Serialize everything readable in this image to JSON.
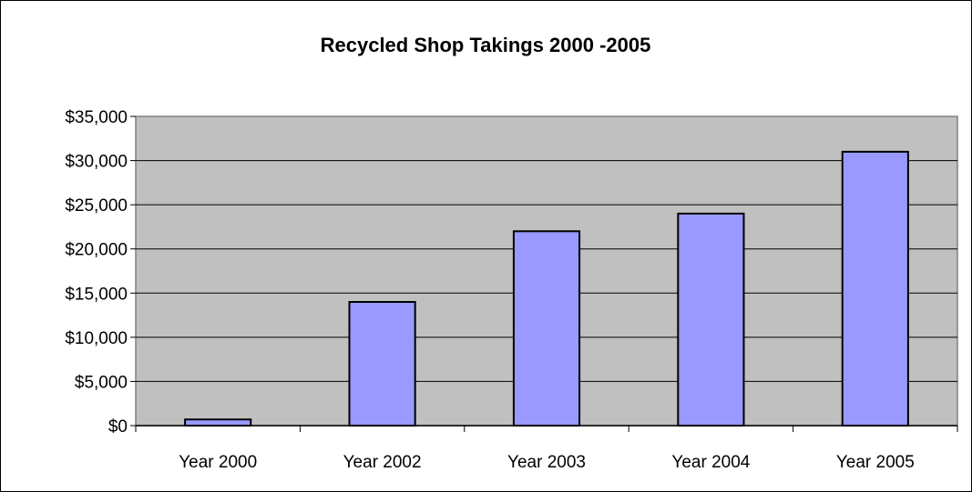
{
  "chart_data": {
    "type": "bar",
    "title": "Recycled Shop Takings 2000 -2005",
    "xlabel": "",
    "ylabel": "",
    "categories": [
      "Year 2000",
      "Year 2002",
      "Year 2003",
      "Year 2004",
      "Year 2005"
    ],
    "values": [
      700,
      14000,
      22000,
      24000,
      31000
    ],
    "ylim": [
      0,
      35000
    ],
    "ytick_step": 5000,
    "ytick_labels": [
      "$0",
      "$5,000",
      "$10,000",
      "$15,000",
      "$20,000",
      "$25,000",
      "$30,000",
      "$35,000"
    ],
    "grid": true,
    "legend": "none",
    "colors": {
      "bar_fill": "#9999ff",
      "bar_stroke": "#000000",
      "plot_background": "#c0c0c0",
      "plot_border": "#808080",
      "gridline": "#000000"
    }
  }
}
